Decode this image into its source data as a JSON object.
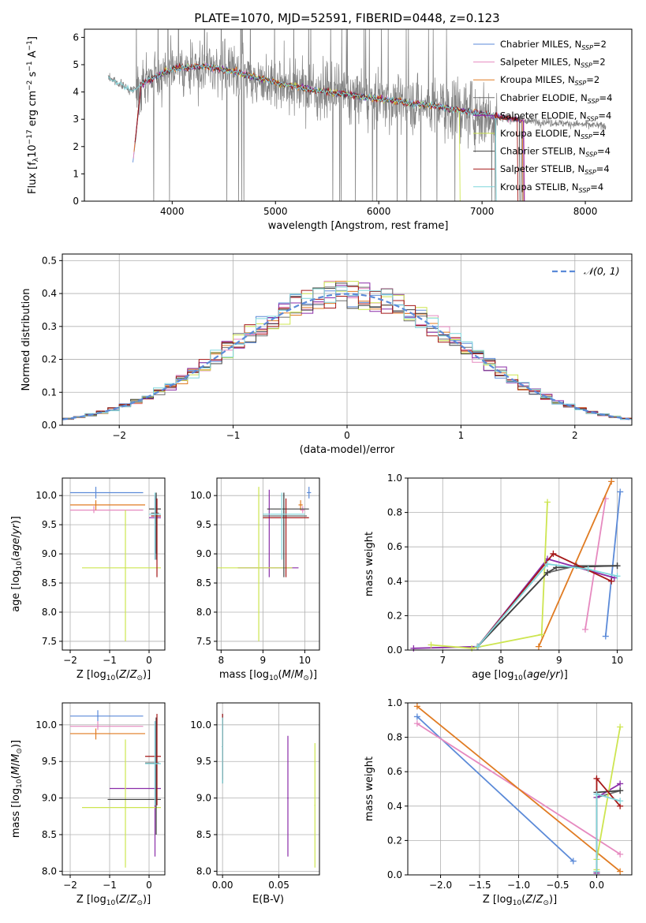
{
  "figure_title": "PLATE=1070, MJD=52591, FIBERID=0448, z=0.123",
  "colors": {
    "spectrum": "#808080",
    "grid": "#b0b0b0",
    "normal_curve": "#5b8ad8",
    "models": [
      "#5b8ad8",
      "#e68ac0",
      "#e07b22",
      "#6e6e6e",
      "#8a2ca8",
      "#cde550",
      "#404040",
      "#a51818",
      "#7fd6dc"
    ]
  },
  "legend_models": [
    {
      "base": "Chabrier MILES, N",
      "sub": "SSP",
      "tail": "=2"
    },
    {
      "base": "Salpeter MILES, N",
      "sub": "SSP",
      "tail": "=2"
    },
    {
      "base": "Kroupa MILES, N",
      "sub": "SSP",
      "tail": "=2"
    },
    {
      "base": "Chabrier ELODIE, N",
      "sub": "SSP",
      "tail": "=4"
    },
    {
      "base": "Salpeter ELODIE, N",
      "sub": "SSP",
      "tail": "=4"
    },
    {
      "base": "Kroupa ELODIE, N",
      "sub": "SSP",
      "tail": "=4"
    },
    {
      "base": "Chabrier STELIB, N",
      "sub": "SSP",
      "tail": "=4"
    },
    {
      "base": "Salpeter STELIB, N",
      "sub": "SSP",
      "tail": "=4"
    },
    {
      "base": "Kroupa STELIB, N",
      "sub": "SSP",
      "tail": "=4"
    }
  ],
  "chart_data": [
    {
      "id": "spectrum",
      "type": "line",
      "xlabel": "wavelength [Angstrom, rest frame]",
      "ylabel_html": "Flux [f<tspan font-size='9' dy='3'>λ</tspan><tspan dy='-3'>10</tspan><tspan font-size='9' dy='-5'>−17</tspan><tspan dy='5'> erg cm</tspan><tspan font-size='9' dy='-5'>−2</tspan><tspan dy='5'> s</tspan><tspan font-size='9' dy='-5'>−1</tspan><tspan dy='5'> A</tspan><tspan font-size='9' dy='-5'>−1</tspan><tspan dy='5'>]</tspan>",
      "xlim": [
        3150,
        8450
      ],
      "ylim": [
        0,
        6.3
      ],
      "xticks": [
        4000,
        5000,
        6000,
        7000,
        8000
      ],
      "yticks": [
        0,
        1,
        2,
        3,
        4,
        5,
        6
      ],
      "data_range": [
        3380,
        8200
      ],
      "continuum": [
        [
          3380,
          4.55
        ],
        [
          3600,
          4.05
        ],
        [
          3800,
          4.5
        ],
        [
          4000,
          4.85
        ],
        [
          4300,
          4.95
        ],
        [
          4600,
          4.75
        ],
        [
          5000,
          4.35
        ],
        [
          5400,
          4.05
        ],
        [
          5800,
          3.85
        ],
        [
          6200,
          3.65
        ],
        [
          6600,
          3.45
        ],
        [
          7000,
          3.2
        ],
        [
          7400,
          2.95
        ],
        [
          8200,
          2.75
        ]
      ],
      "model_range": [
        3620,
        7430
      ],
      "model_end_ranges": [
        [
          3620,
          7420
        ],
        [
          3625,
          7430
        ],
        [
          3630,
          7410
        ],
        [
          3640,
          7400
        ],
        [
          3650,
          7420
        ],
        [
          3900,
          6800
        ],
        [
          3640,
          7380
        ],
        [
          3640,
          7360
        ],
        [
          3380,
          7150
        ]
      ]
    },
    {
      "id": "residuals",
      "type": "histogram",
      "xlabel": "(data-model)/error",
      "ylabel": "Normed distribution",
      "xlim": [
        -2.5,
        2.5
      ],
      "ylim": [
        0,
        0.52
      ],
      "xticks": [
        -2,
        -1,
        0,
        1,
        2
      ],
      "yticks": [
        0.0,
        0.1,
        0.2,
        0.3,
        0.4,
        0.5
      ],
      "bin_width": 0.1,
      "normal_label": "𝒩(0, 1)"
    },
    {
      "id": "age_vs_Z",
      "type": "errorbar",
      "xlabel_html": "Z [log<tspan font-size='9' dy='3'>10</tspan><tspan dy='-3'>(</tspan><tspan font-style='italic'>Z</tspan><tspan>/</tspan><tspan font-style='italic'>Z</tspan><tspan font-size='9' dy='3'>⊙</tspan><tspan dy='-3'>)]</tspan>",
      "ylabel_html": "age  [log<tspan font-size='9' dy='3'>10</tspan><tspan dy='-3'>(</tspan><tspan font-style='italic'>age</tspan><tspan>/</tspan><tspan font-style='italic'>yr</tspan><tspan>)]</tspan>",
      "xlim": [
        -2.2,
        0.4
      ],
      "ylim": [
        7.35,
        10.3
      ],
      "xticks": [
        -2,
        -1,
        0
      ],
      "yticks": [
        7.5,
        8.0,
        8.5,
        9.0,
        9.5,
        10.0
      ],
      "points": [
        {
          "c": 0,
          "x": -1.35,
          "y": 10.05,
          "xe": [
            -2.0,
            -0.15
          ],
          "ye": [
            9.95,
            10.15
          ]
        },
        {
          "c": 1,
          "x": -1.4,
          "y": 9.75,
          "xe": [
            -2.0,
            -0.15
          ],
          "ye": [
            9.7,
            9.82
          ]
        },
        {
          "c": 2,
          "x": -1.35,
          "y": 9.84,
          "xe": [
            -2.0,
            -0.1
          ],
          "ye": [
            9.75,
            9.92
          ]
        },
        {
          "c": 3,
          "x": 0.18,
          "y": 9.7,
          "xe": [
            0.05,
            0.25
          ],
          "ye": [
            8.9,
            10.05
          ]
        },
        {
          "c": 4,
          "x": 0.15,
          "y": 9.62,
          "xe": [
            0.0,
            0.3
          ],
          "ye": [
            8.9,
            10.0
          ]
        },
        {
          "c": 5,
          "x": -0.6,
          "y": 8.76,
          "xe": [
            -1.7,
            0.3
          ],
          "ye": [
            7.5,
            9.75
          ]
        },
        {
          "c": 6,
          "x": 0.18,
          "y": 9.77,
          "xe": [
            0.0,
            0.3
          ],
          "ye": [
            9.0,
            10.05
          ]
        },
        {
          "c": 7,
          "x": 0.2,
          "y": 9.65,
          "xe": [
            0.05,
            0.3
          ],
          "ye": [
            8.6,
            9.95
          ]
        },
        {
          "c": 8,
          "x": 0.15,
          "y": 9.68,
          "xe": [
            0.0,
            0.3
          ],
          "ye": [
            8.9,
            10.05
          ]
        }
      ]
    },
    {
      "id": "age_vs_mass",
      "type": "errorbar",
      "xlabel_html": "mass [log<tspan font-size='9' dy='3'>10</tspan><tspan dy='-3'>(</tspan><tspan font-style='italic'>M</tspan><tspan>/</tspan><tspan font-style='italic'>M</tspan><tspan font-size='9' dy='3'>⊙</tspan><tspan dy='-3'>)]</tspan>",
      "xlim": [
        7.9,
        10.35
      ],
      "ylim": [
        7.35,
        10.3
      ],
      "xticks": [
        8,
        9,
        10
      ],
      "yticks": [
        7.5,
        8.0,
        8.5,
        9.0,
        9.5,
        10.0
      ],
      "points": [
        {
          "c": 0,
          "x": 10.1,
          "y": 10.05,
          "xe": [
            10.05,
            10.15
          ],
          "ye": [
            9.95,
            10.15
          ]
        },
        {
          "c": 1,
          "x": 9.95,
          "y": 9.75,
          "xe": [
            9.9,
            10.0
          ],
          "ye": [
            9.7,
            9.82
          ]
        },
        {
          "c": 2,
          "x": 9.9,
          "y": 9.84,
          "xe": [
            9.85,
            9.95
          ],
          "ye": [
            9.75,
            9.92
          ]
        },
        {
          "c": 3,
          "x": 9.5,
          "y": 9.65,
          "xe": [
            9.0,
            10.05
          ],
          "ye": [
            8.9,
            10.05
          ]
        },
        {
          "c": 4,
          "x": 9.15,
          "y": 8.76,
          "xe": [
            8.4,
            9.85
          ],
          "ye": [
            8.6,
            10.1
          ]
        },
        {
          "c": 5,
          "x": 8.9,
          "y": 8.76,
          "xe": [
            7.9,
            9.7
          ],
          "ye": [
            7.5,
            10.15
          ]
        },
        {
          "c": 6,
          "x": 9.5,
          "y": 9.77,
          "xe": [
            9.1,
            10.1
          ],
          "ye": [
            8.6,
            10.05
          ]
        },
        {
          "c": 7,
          "x": 9.55,
          "y": 9.62,
          "xe": [
            9.0,
            10.1
          ],
          "ye": [
            8.6,
            9.95
          ]
        },
        {
          "c": 8,
          "x": 9.45,
          "y": 9.68,
          "xe": [
            9.0,
            10.0
          ],
          "ye": [
            8.9,
            10.05
          ]
        }
      ]
    },
    {
      "id": "massweight_vs_age",
      "type": "line",
      "xlabel_html": "age  [log<tspan font-size='9' dy='3'>10</tspan><tspan dy='-3'>(</tspan><tspan font-style='italic'>age</tspan><tspan>/</tspan><tspan font-style='italic'>yr</tspan><tspan>)]</tspan>",
      "ylabel": "mass weight",
      "xlim": [
        6.4,
        10.25
      ],
      "ylim": [
        0,
        1.0
      ],
      "xticks": [
        7,
        8,
        9,
        10
      ],
      "yticks": [
        0.0,
        0.2,
        0.4,
        0.6,
        0.8,
        1.0
      ],
      "series": [
        {
          "c": 0,
          "pts": [
            [
              9.8,
              0.08
            ],
            [
              10.05,
              0.92
            ]
          ]
        },
        {
          "c": 1,
          "pts": [
            [
              9.45,
              0.12
            ],
            [
              9.8,
              0.88
            ]
          ]
        },
        {
          "c": 2,
          "pts": [
            [
              8.65,
              0.02
            ],
            [
              9.9,
              0.98
            ]
          ]
        },
        {
          "c": 3,
          "pts": [
            [
              7.6,
              0.02
            ],
            [
              8.8,
              0.45
            ],
            [
              9.3,
              0.49
            ],
            [
              10.0,
              0.49
            ]
          ]
        },
        {
          "c": 4,
          "pts": [
            [
              6.5,
              0.01
            ],
            [
              7.6,
              0.02
            ],
            [
              8.8,
              0.53
            ],
            [
              9.95,
              0.42
            ]
          ]
        },
        {
          "c": 5,
          "pts": [
            [
              6.8,
              0.03
            ],
            [
              7.5,
              0.01
            ],
            [
              8.7,
              0.09
            ],
            [
              8.8,
              0.86
            ]
          ]
        },
        {
          "c": 6,
          "pts": [
            [
              7.6,
              0.02
            ],
            [
              8.8,
              0.45
            ],
            [
              8.95,
              0.48
            ],
            [
              10.0,
              0.49
            ]
          ]
        },
        {
          "c": 7,
          "pts": [
            [
              7.6,
              0.02
            ],
            [
              8.9,
              0.56
            ],
            [
              9.9,
              0.4
            ]
          ]
        },
        {
          "c": 8,
          "pts": [
            [
              7.6,
              0.02
            ],
            [
              8.8,
              0.5
            ],
            [
              9.5,
              0.47
            ],
            [
              10.0,
              0.43
            ]
          ]
        }
      ]
    },
    {
      "id": "mass_vs_Z",
      "type": "errorbar",
      "xlabel_html": "Z [log<tspan font-size='9' dy='3'>10</tspan><tspan dy='-3'>(</tspan><tspan font-style='italic'>Z</tspan><tspan>/</tspan><tspan font-style='italic'>Z</tspan><tspan font-size='9' dy='3'>⊙</tspan><tspan dy='-3'>)]</tspan>",
      "ylabel_html": "mass [log<tspan font-size='9' dy='3'>10</tspan><tspan dy='-3'>(</tspan><tspan font-style='italic'>M</tspan><tspan>/</tspan><tspan font-style='italic'>M</tspan><tspan font-size='9' dy='3'>⊙</tspan><tspan dy='-3'>)]</tspan>",
      "xlim": [
        -2.2,
        0.4
      ],
      "ylim": [
        7.95,
        10.3
      ],
      "xticks": [
        -2,
        -1,
        0
      ],
      "yticks": [
        8.0,
        8.5,
        9.0,
        9.5,
        10.0
      ],
      "points": [
        {
          "c": 0,
          "x": -1.3,
          "y": 10.12,
          "xe": [
            -2.0,
            -0.15
          ],
          "ye": [
            10.05,
            10.2
          ]
        },
        {
          "c": 1,
          "x": -1.3,
          "y": 9.98,
          "xe": [
            -2.0,
            -0.15
          ],
          "ye": [
            9.93,
            10.05
          ]
        },
        {
          "c": 2,
          "x": -1.35,
          "y": 9.88,
          "xe": [
            -2.0,
            -0.1
          ],
          "ye": [
            9.8,
            9.95
          ]
        },
        {
          "c": 3,
          "x": 0.18,
          "y": 9.48,
          "xe": [
            -0.1,
            0.25
          ],
          "ye": [
            9.0,
            10.1
          ]
        },
        {
          "c": 4,
          "x": 0.15,
          "y": 9.13,
          "xe": [
            -1.0,
            0.3
          ],
          "ye": [
            8.2,
            10.05
          ]
        },
        {
          "c": 5,
          "x": -0.6,
          "y": 8.87,
          "xe": [
            -1.7,
            0.3
          ],
          "ye": [
            8.05,
            9.8
          ]
        },
        {
          "c": 6,
          "x": 0.18,
          "y": 8.98,
          "xe": [
            -1.05,
            0.3
          ],
          "ye": [
            8.5,
            10.1
          ]
        },
        {
          "c": 7,
          "x": 0.2,
          "y": 9.57,
          "xe": [
            -0.1,
            0.3
          ],
          "ye": [
            8.9,
            10.15
          ]
        },
        {
          "c": 8,
          "x": 0.15,
          "y": 9.47,
          "xe": [
            -0.1,
            0.3
          ],
          "ye": [
            8.9,
            10.05
          ]
        }
      ]
    },
    {
      "id": "mass_vs_ebv",
      "type": "errorbar",
      "xlabel": "E(B-V)",
      "xlim": [
        -0.005,
        0.086
      ],
      "ylim": [
        7.95,
        10.3
      ],
      "xticks": [
        0.0,
        0.05
      ],
      "yticks": [
        8.0,
        8.5,
        9.0,
        9.5,
        10.0
      ],
      "points": [
        {
          "c": 0,
          "x": 0.0,
          "y": 9.7,
          "ye": [
            9.25,
            10.15
          ]
        },
        {
          "c": 1,
          "x": 0.0,
          "y": 9.7,
          "ye": [
            9.25,
            10.1
          ]
        },
        {
          "c": 2,
          "x": 0.0,
          "y": 9.7,
          "ye": [
            9.25,
            10.1
          ]
        },
        {
          "c": 3,
          "x": 0.0,
          "y": 9.7,
          "ye": [
            9.2,
            10.15
          ]
        },
        {
          "c": 4,
          "x": 0.058,
          "y": 9.0,
          "ye": [
            8.2,
            9.85
          ]
        },
        {
          "c": 5,
          "x": 0.082,
          "y": 8.9,
          "ye": [
            8.05,
            9.75
          ]
        },
        {
          "c": 6,
          "x": 0.0,
          "y": 9.7,
          "ye": [
            9.2,
            10.1
          ]
        },
        {
          "c": 7,
          "x": 0.0,
          "y": 9.7,
          "ye": [
            9.25,
            10.15
          ]
        },
        {
          "c": 8,
          "x": 0.0,
          "y": 9.7,
          "ye": [
            9.2,
            10.1
          ]
        }
      ]
    },
    {
      "id": "massweight_vs_Z",
      "type": "line",
      "xlabel_html": "Z [log<tspan font-size='9' dy='3'>10</tspan><tspan dy='-3'>(</tspan><tspan font-style='italic'>Z</tspan><tspan>/</tspan><tspan font-style='italic'>Z</tspan><tspan font-size='9' dy='3'>⊙</tspan><tspan dy='-3'>)]</tspan>",
      "ylabel": "mass weight",
      "xlim": [
        -2.42,
        0.45
      ],
      "ylim": [
        0,
        1.0
      ],
      "xticks": [
        -2.0,
        -1.5,
        -1.0,
        -0.5,
        0.0
      ],
      "yticks": [
        0.0,
        0.2,
        0.4,
        0.6,
        0.8,
        1.0
      ],
      "series": [
        {
          "c": 0,
          "pts": [
            [
              -2.3,
              0.92
            ],
            [
              -0.3,
              0.08
            ]
          ]
        },
        {
          "c": 1,
          "pts": [
            [
              -2.3,
              0.88
            ],
            [
              0.3,
              0.12
            ]
          ]
        },
        {
          "c": 2,
          "pts": [
            [
              -2.3,
              0.98
            ],
            [
              0.3,
              0.02
            ]
          ]
        },
        {
          "c": 3,
          "pts": [
            [
              0.0,
              0.02
            ],
            [
              0.0,
              0.45
            ],
            [
              0.3,
              0.49
            ]
          ]
        },
        {
          "c": 4,
          "pts": [
            [
              0.0,
              0.01
            ],
            [
              0.0,
              0.45
            ],
            [
              0.3,
              0.53
            ]
          ]
        },
        {
          "c": 5,
          "pts": [
            [
              0.0,
              0.03
            ],
            [
              0.0,
              0.09
            ],
            [
              0.3,
              0.86
            ]
          ]
        },
        {
          "c": 6,
          "pts": [
            [
              0.0,
              0.02
            ],
            [
              0.0,
              0.48
            ],
            [
              0.3,
              0.49
            ]
          ]
        },
        {
          "c": 7,
          "pts": [
            [
              0.0,
              0.02
            ],
            [
              0.0,
              0.56
            ],
            [
              0.3,
              0.4
            ]
          ]
        },
        {
          "c": 8,
          "pts": [
            [
              0.0,
              0.02
            ],
            [
              0.0,
              0.47
            ],
            [
              0.3,
              0.43
            ]
          ]
        }
      ]
    }
  ]
}
